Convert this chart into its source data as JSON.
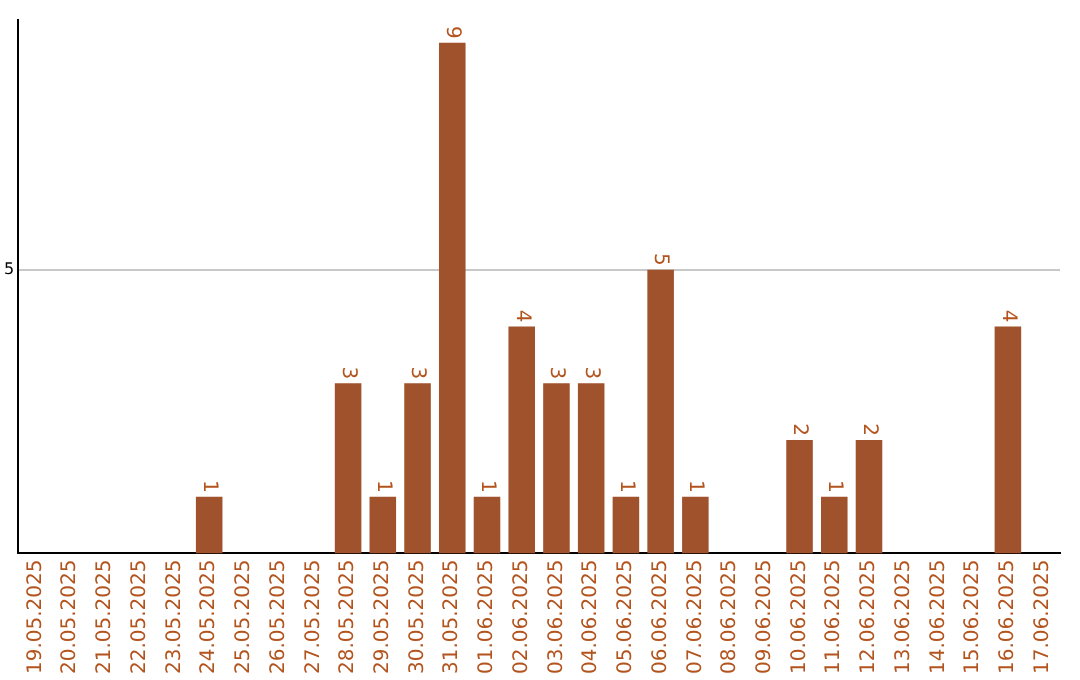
{
  "chart_data": {
    "type": "bar",
    "categories": [
      "19.05.2025",
      "20.05.2025",
      "21.05.2025",
      "22.05.2025",
      "23.05.2025",
      "24.05.2025",
      "25.05.2025",
      "26.05.2025",
      "27.05.2025",
      "28.05.2025",
      "29.05.2025",
      "30.05.2025",
      "31.05.2025",
      "01.06.2025",
      "02.06.2025",
      "03.06.2025",
      "04.06.2025",
      "05.06.2025",
      "06.06.2025",
      "07.06.2025",
      "08.06.2025",
      "09.06.2025",
      "10.06.2025",
      "11.06.2025",
      "12.06.2025",
      "13.06.2025",
      "14.06.2025",
      "15.06.2025",
      "16.06.2025",
      "17.06.2025"
    ],
    "values": [
      0,
      0,
      0,
      0,
      0,
      1,
      0,
      0,
      0,
      3,
      1,
      3,
      9,
      1,
      4,
      3,
      3,
      1,
      5,
      1,
      0,
      0,
      2,
      1,
      2,
      0,
      0,
      0,
      4,
      0
    ],
    "value_labels": [
      null,
      null,
      null,
      null,
      null,
      "1",
      null,
      null,
      null,
      "3",
      "1",
      "3",
      "9",
      "1",
      "4",
      "3",
      "3",
      "1",
      "5",
      "1",
      null,
      null,
      "2",
      "1",
      "2",
      null,
      null,
      null,
      "4",
      null
    ],
    "color": "#a0522d",
    "ylim": [
      0,
      9.4
    ],
    "yticks": [
      5
    ],
    "grid": "y",
    "legend": false
  }
}
